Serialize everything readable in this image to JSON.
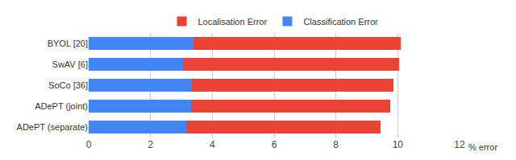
{
  "chart_data": {
    "type": "bar",
    "orientation": "horizontal",
    "stacked": true,
    "categories": [
      "BYOL [20]",
      "SwAV [6]",
      "SoCo [36]",
      "ADePT (joint)",
      "ADePT (separate)"
    ],
    "series": [
      {
        "name": "Classification Error",
        "color": "#4285f4",
        "values": [
          3.4,
          3.05,
          3.35,
          3.3,
          3.15
        ]
      },
      {
        "name": "Localisation Error",
        "color": "#ea4335",
        "values": [
          6.7,
          7.0,
          6.5,
          6.45,
          6.3
        ]
      }
    ],
    "x_label": "% error",
    "xlim": [
      0,
      12
    ],
    "xticks": [
      0,
      2,
      4,
      6,
      8,
      10,
      12
    ],
    "grid": true,
    "legend": "top"
  }
}
